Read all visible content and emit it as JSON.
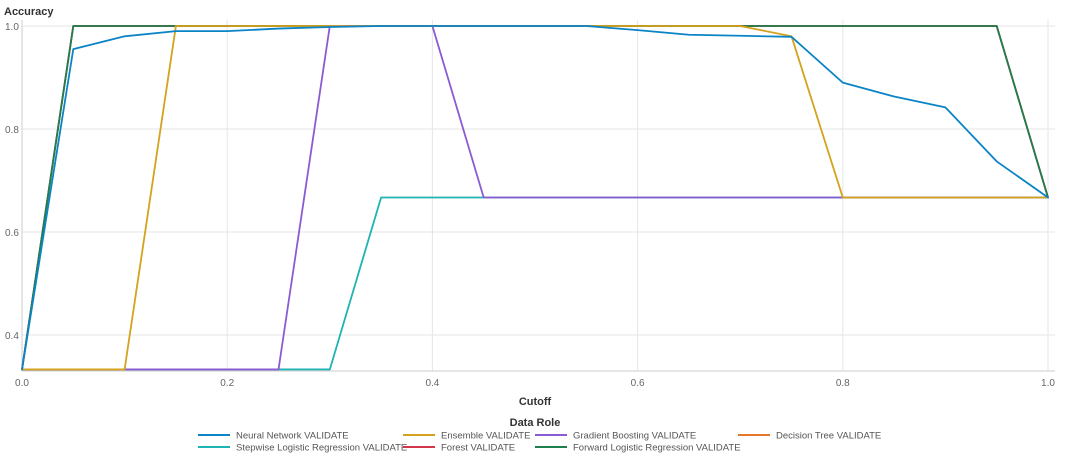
{
  "chart_data": {
    "type": "line",
    "title": "",
    "ylabel": "Accuracy",
    "xlabel": "Cutoff",
    "xlim": [
      0,
      1
    ],
    "ylim": [
      0.33,
      1.0
    ],
    "x_ticks": [
      "0.0",
      "0.2",
      "0.4",
      "0.6",
      "0.8",
      "1.0"
    ],
    "y_ticks": [
      "0.4",
      "0.6",
      "0.8",
      "1.0"
    ],
    "grid": true,
    "legend": {
      "title": "Data Role",
      "position": "bottom"
    },
    "series": [
      {
        "name": "Neural Network VALIDATE",
        "color": "#0a84c6",
        "x": [
          0,
          0.05,
          0.1,
          0.15,
          0.2,
          0.25,
          0.3,
          0.35,
          0.4,
          0.45,
          0.5,
          0.55,
          0.6,
          0.65,
          0.7,
          0.75,
          0.8,
          0.85,
          0.9,
          0.95,
          1.0
        ],
        "y": [
          0.333,
          0.955,
          0.98,
          0.99,
          0.99,
          0.995,
          0.998,
          1.0,
          1.0,
          1.0,
          1.0,
          1.0,
          0.992,
          0.983,
          0.981,
          0.979,
          0.89,
          0.863,
          0.842,
          0.737,
          0.667
        ]
      },
      {
        "name": "Ensemble VALIDATE",
        "color": "#d4a21c",
        "x": [
          0,
          0.05,
          0.1,
          0.15,
          0.2,
          0.25,
          0.3,
          0.35,
          0.4,
          0.45,
          0.5,
          0.55,
          0.6,
          0.65,
          0.7,
          0.75,
          0.8,
          0.85,
          0.9,
          0.95,
          1.0
        ],
        "y": [
          0.333,
          0.333,
          0.333,
          1.0,
          1.0,
          1.0,
          1.0,
          1.0,
          1.0,
          1.0,
          1.0,
          1.0,
          1.0,
          1.0,
          1.0,
          0.98,
          0.667,
          0.667,
          0.667,
          0.667,
          0.667
        ]
      },
      {
        "name": "Gradient Boosting VALIDATE",
        "color": "#8a5bd1",
        "x": [
          0,
          0.05,
          0.1,
          0.15,
          0.2,
          0.25,
          0.3,
          0.35,
          0.4,
          0.45,
          0.5,
          0.55,
          0.6,
          0.65,
          0.7,
          0.75,
          0.8,
          0.85,
          0.9,
          0.95,
          1.0
        ],
        "y": [
          0.333,
          0.333,
          0.333,
          0.333,
          0.333,
          0.333,
          1.0,
          1.0,
          1.0,
          0.667,
          0.667,
          0.667,
          0.667,
          0.667,
          0.667,
          0.667,
          0.667,
          0.667,
          0.667,
          0.667,
          0.667
        ]
      },
      {
        "name": "Decision Tree VALIDATE",
        "color": "#e8772e",
        "x": [
          0,
          0.05,
          0.1,
          0.15,
          0.2,
          0.25,
          0.3,
          0.35,
          0.4,
          0.45,
          0.5,
          0.55,
          0.6,
          0.65,
          0.7,
          0.75,
          0.8,
          0.85,
          0.9,
          0.95,
          1.0
        ],
        "y": [
          0.333,
          1.0,
          1.0,
          1.0,
          1.0,
          1.0,
          1.0,
          1.0,
          1.0,
          1.0,
          1.0,
          1.0,
          1.0,
          1.0,
          1.0,
          1.0,
          1.0,
          1.0,
          1.0,
          1.0,
          0.667
        ]
      },
      {
        "name": "Stepwise Logistic Regression VALIDATE",
        "color": "#1fb3b3",
        "x": [
          0,
          0.05,
          0.1,
          0.15,
          0.2,
          0.25,
          0.3,
          0.35,
          0.4,
          0.45,
          0.5,
          0.55,
          0.6,
          0.65,
          0.7,
          0.75,
          0.8,
          0.85,
          0.9,
          0.95,
          1.0
        ],
        "y": [
          0.333,
          0.333,
          0.333,
          0.333,
          0.333,
          0.333,
          0.333,
          0.667,
          0.667,
          0.667,
          0.667,
          0.667,
          0.667,
          0.667,
          0.667,
          0.667,
          0.667,
          0.667,
          0.667,
          0.667,
          0.667
        ]
      },
      {
        "name": "Forest VALIDATE",
        "color": "#d3374a",
        "x": [
          0,
          0.05,
          0.1,
          0.15,
          0.2,
          0.25,
          0.3,
          0.35,
          0.4,
          0.45,
          0.5,
          0.55,
          0.6,
          0.65,
          0.7,
          0.75,
          0.8,
          0.85,
          0.9,
          0.95,
          1.0
        ],
        "y": [
          0.333,
          1.0,
          1.0,
          1.0,
          1.0,
          1.0,
          1.0,
          1.0,
          1.0,
          1.0,
          1.0,
          1.0,
          1.0,
          1.0,
          1.0,
          1.0,
          1.0,
          1.0,
          1.0,
          1.0,
          0.667
        ]
      },
      {
        "name": "Forward Logistic Regression VALIDATE",
        "color": "#1e7f4e",
        "x": [
          0,
          0.05,
          0.1,
          0.15,
          0.2,
          0.25,
          0.3,
          0.35,
          0.4,
          0.45,
          0.5,
          0.55,
          0.6,
          0.65,
          0.7,
          0.75,
          0.8,
          0.85,
          0.9,
          0.95,
          1.0
        ],
        "y": [
          0.333,
          1.0,
          1.0,
          1.0,
          1.0,
          1.0,
          1.0,
          1.0,
          1.0,
          1.0,
          1.0,
          1.0,
          1.0,
          1.0,
          1.0,
          1.0,
          1.0,
          1.0,
          1.0,
          1.0,
          0.667
        ]
      }
    ]
  }
}
